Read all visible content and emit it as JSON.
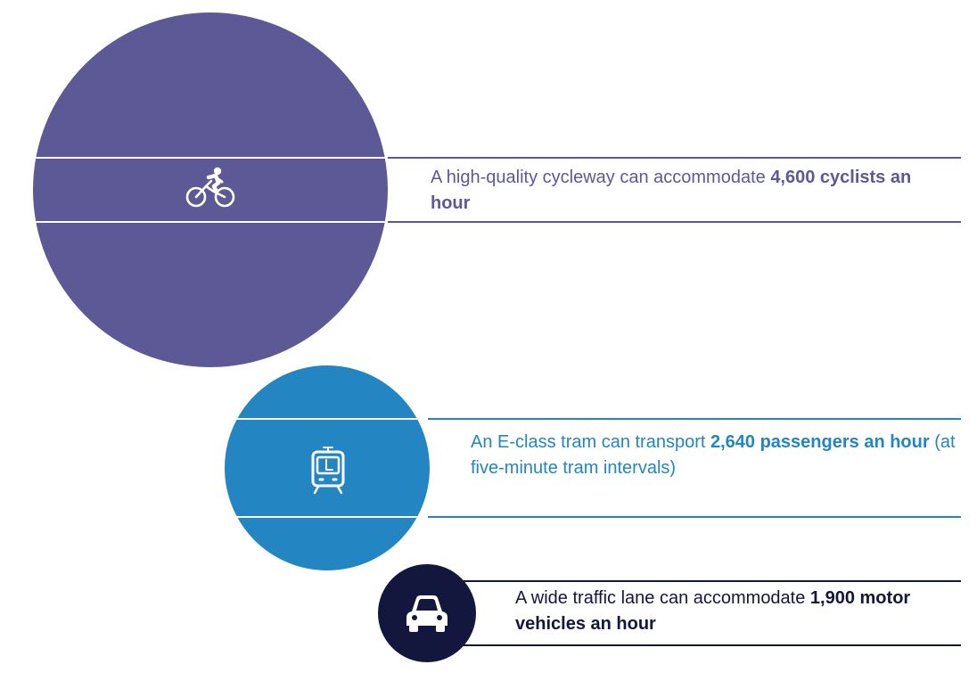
{
  "colors": {
    "cycle": "#5d5896",
    "tram": "#2385c1",
    "car": "#14173d"
  },
  "rows": {
    "bike": {
      "icon": "bicycle-icon",
      "text_before": "A high-quality cycleway can accommodate ",
      "text_bold": "4,600 cyclists an hour",
      "text_after": ""
    },
    "tram": {
      "icon": "tram-icon",
      "text_before": "An E-class tram can transport ",
      "text_bold": "2,640 passengers an hour",
      "text_after": " (at five-minute tram intervals)"
    },
    "car": {
      "icon": "car-icon",
      "text_before": "A wide traffic lane can accommodate ",
      "text_bold": "1,900 motor vehicles an hour",
      "text_after": ""
    }
  }
}
